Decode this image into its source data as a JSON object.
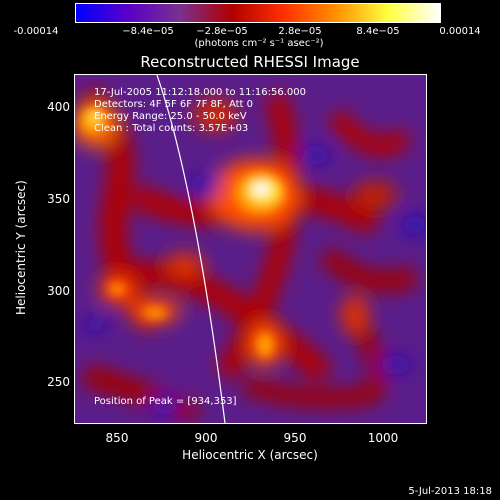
{
  "colorbar": {
    "ticks": [
      "-0.00014",
      "−8.4e−05",
      "−2.8e−05",
      "2.8e−05",
      "8.4e−05",
      "0.00014"
    ],
    "units": "(photons cm⁻² s⁻¹ asec⁻²)",
    "gradient": [
      "#0000ff",
      "#5a00c8",
      "#7a3090",
      "#b00000",
      "#ff3000",
      "#ff9000",
      "#ffff40",
      "#ffffff"
    ]
  },
  "title": "Reconstructed RHESSI Image",
  "info": {
    "line1": "17-Jul-2005 11:12:18.000 to 11:16:56.000",
    "line2": "Detectors: 4F 5F 6F 7F 8F, Att 0",
    "line3": "Energy Range: 25.0 - 50.0 keV",
    "line4": "Clean :    Total counts: 3.57E+03",
    "peak": "Position of Peak = [934,353]"
  },
  "axes": {
    "xlabel": "Heliocentric X (arcsec)",
    "ylabel": "Heliocentric Y (arcsec)",
    "xticks": [
      "850",
      "900",
      "950",
      "1000"
    ],
    "yticks": [
      "400",
      "350",
      "300",
      "250"
    ]
  },
  "footer_date": "5-Jul-2013 18:18"
}
